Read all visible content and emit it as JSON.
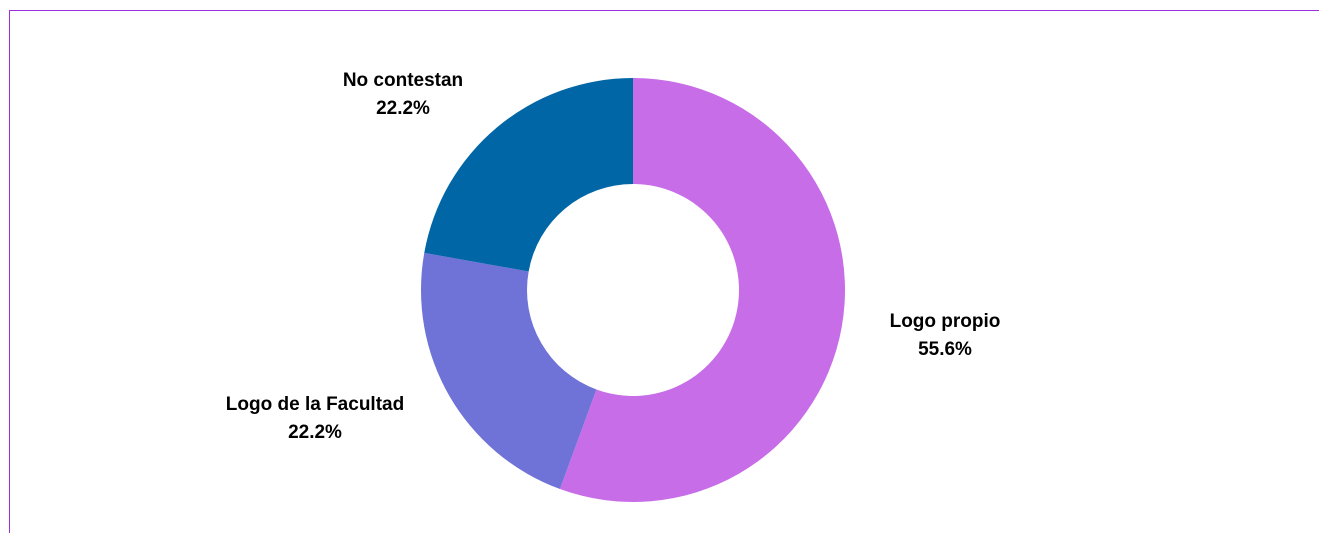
{
  "chart_data": {
    "type": "donut",
    "categories": [
      "Logo propio",
      "Logo de la Facultad",
      "No contestan"
    ],
    "values": [
      55.6,
      22.2,
      22.2
    ],
    "value_labels": [
      "55.6%",
      "22.2%",
      "22.2%"
    ],
    "colors": [
      "#c86de8",
      "#6f72d6",
      "#0066a6"
    ]
  }
}
